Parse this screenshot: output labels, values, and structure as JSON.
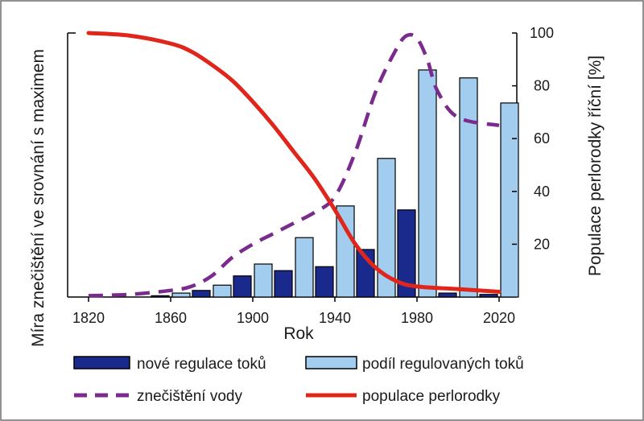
{
  "chart_data": {
    "type": "bar",
    "xlabel": "Rok",
    "ylabel_left": "Míra znečištění ve srovnání s maximem",
    "ylabel_right": "Populace perlorodky říční [%]",
    "x_ticks": [
      "1820",
      "1860",
      "1900",
      "1940",
      "1980",
      "2020"
    ],
    "y_ticks": [
      "20",
      "40",
      "60",
      "80",
      "100"
    ],
    "xlim": [
      1810,
      2030
    ],
    "ylim": [
      0,
      100
    ],
    "grid": false,
    "legend_position": "bottom",
    "bars": {
      "categories": [
        1860,
        1880,
        1900,
        1920,
        1940,
        1960,
        1980,
        2000,
        2020
      ],
      "series": [
        {
          "name": "nové regulace toků",
          "color": "#1a2a8c",
          "values": [
            0.5,
            2.5,
            8,
            10,
            11.5,
            18,
            33,
            1.5,
            1
          ]
        },
        {
          "name": "podíl regulovaných toků",
          "color": "#a3cdee",
          "values": [
            1.5,
            4.5,
            12.5,
            22.5,
            34.5,
            52.5,
            86,
            83,
            73.5
          ]
        }
      ]
    },
    "lines": [
      {
        "name": "znečištění vody",
        "color": "#7b2a8e",
        "style": "dashed",
        "points": [
          [
            1820,
            0.5
          ],
          [
            1840,
            1
          ],
          [
            1860,
            2.5
          ],
          [
            1870,
            4
          ],
          [
            1880,
            8
          ],
          [
            1890,
            15
          ],
          [
            1900,
            20
          ],
          [
            1910,
            24
          ],
          [
            1920,
            28
          ],
          [
            1930,
            32
          ],
          [
            1940,
            38
          ],
          [
            1950,
            55
          ],
          [
            1960,
            78
          ],
          [
            1970,
            94
          ],
          [
            1975,
            99
          ],
          [
            1980,
            98
          ],
          [
            1985,
            90
          ],
          [
            1990,
            78
          ],
          [
            2000,
            68
          ],
          [
            2020,
            65
          ]
        ]
      },
      {
        "name": "populace perlorodky",
        "color": "#e0251b",
        "style": "solid",
        "points": [
          [
            1820,
            100
          ],
          [
            1840,
            99
          ],
          [
            1860,
            96
          ],
          [
            1870,
            93
          ],
          [
            1880,
            88
          ],
          [
            1890,
            82
          ],
          [
            1900,
            74
          ],
          [
            1910,
            65
          ],
          [
            1920,
            55
          ],
          [
            1930,
            45
          ],
          [
            1940,
            33
          ],
          [
            1950,
            20
          ],
          [
            1960,
            11
          ],
          [
            1970,
            6
          ],
          [
            1980,
            4
          ],
          [
            2000,
            3
          ],
          [
            2020,
            2
          ]
        ]
      }
    ]
  }
}
